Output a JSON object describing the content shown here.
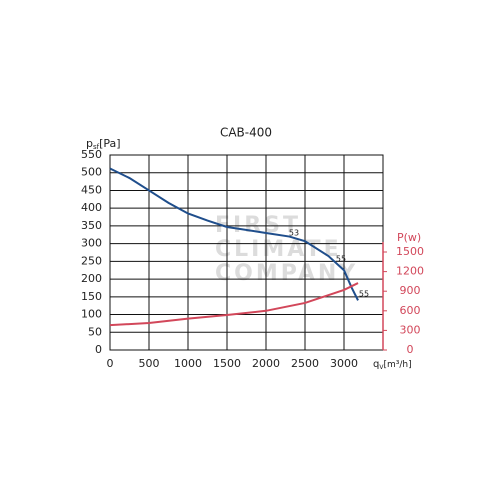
{
  "chart_data": {
    "type": "line",
    "title": "CAB-400",
    "y_label": [
      "p",
      "sf",
      "[Pa]"
    ],
    "x_label": [
      "q",
      "V",
      "[m³/h]"
    ],
    "y2_label": "P(w)",
    "watermark": [
      "FIRST",
      "CLIMATE",
      "COMPANY"
    ],
    "xlim": [
      0,
      3500
    ],
    "xticks": [
      0,
      500,
      1000,
      1500,
      2000,
      2500,
      3000
    ],
    "ylim": [
      0,
      550
    ],
    "yticks": [
      0,
      50,
      100,
      150,
      200,
      250,
      300,
      350,
      400,
      450,
      500,
      550
    ],
    "y2lim": [
      0,
      2985
    ],
    "y2ticks": [
      0,
      300,
      600,
      900,
      1200,
      1500
    ],
    "grid": true,
    "series": [
      {
        "name": "psf",
        "color": "#1f4e8c",
        "x": [
          0,
          250,
          500,
          750,
          1000,
          1250,
          1500,
          2000,
          2300,
          2500,
          2800,
          3000,
          3100,
          3180
        ],
        "values": [
          512,
          485,
          450,
          415,
          385,
          365,
          347,
          330,
          320,
          307,
          265,
          225,
          175,
          140
        ]
      },
      {
        "name": "P",
        "color": "#d2475a",
        "axis": "y2",
        "x": [
          0,
          500,
          1000,
          1500,
          2000,
          2500,
          3000,
          3180
        ],
        "values": [
          380,
          413,
          480,
          535,
          600,
          720,
          920,
          1025
        ]
      }
    ],
    "annotations": [
      "53",
      "55",
      "55"
    ]
  }
}
